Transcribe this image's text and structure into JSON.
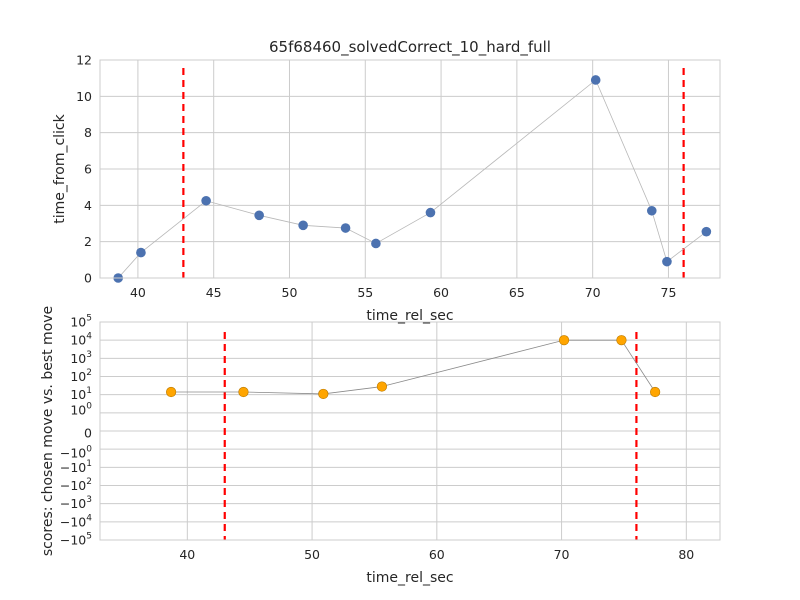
{
  "chart_data": [
    {
      "type": "scatter",
      "title": "65f68460_solvedCorrect_10_hard_full",
      "xlabel": "time_rel_sec",
      "ylabel": "time_from_click",
      "xlim": [
        37.5,
        78.4
      ],
      "ylim": [
        0,
        12
      ],
      "xticks": [
        40,
        45,
        50,
        55,
        60,
        65,
        70,
        75
      ],
      "yticks": [
        0,
        2,
        4,
        6,
        8,
        10,
        12
      ],
      "grid": true,
      "series": [
        {
          "color": "#4c72b0",
          "line": "connected",
          "x": [
            38.7,
            40.2,
            44.5,
            48.0,
            50.9,
            53.7,
            55.7,
            59.3,
            70.2,
            73.9,
            74.9,
            77.5
          ],
          "y": [
            0.0,
            1.4,
            4.25,
            3.45,
            2.9,
            2.75,
            1.9,
            3.6,
            10.9,
            3.7,
            0.9,
            2.55
          ]
        }
      ],
      "vlines": {
        "x": [
          43.0,
          76.0
        ],
        "color": "#ff0000",
        "style": "dashed"
      }
    },
    {
      "type": "scatter",
      "title": "",
      "xlabel": "time_rel_sec",
      "ylabel": "scores: chosen move vs. best move",
      "yscale": "symlog",
      "xlim": [
        33.0,
        82.7
      ],
      "xticks": [
        40,
        50,
        60,
        70,
        80
      ],
      "ytick_values": [
        100000,
        10000,
        1000,
        100,
        10,
        1,
        0,
        -1,
        -10,
        -100,
        -1000,
        -10000,
        -100000
      ],
      "ytick_labels": [
        {
          "base": "10",
          "exp": "5"
        },
        {
          "base": "10",
          "exp": "4"
        },
        {
          "base": "10",
          "exp": "3"
        },
        {
          "base": "10",
          "exp": "2"
        },
        {
          "base": "10",
          "exp": "1"
        },
        {
          "base": "10",
          "exp": "0"
        },
        {
          "base": "0",
          "exp": ""
        },
        {
          "base": "−10",
          "exp": "0"
        },
        {
          "base": "−10",
          "exp": "1"
        },
        {
          "base": "−10",
          "exp": "2"
        },
        {
          "base": "−10",
          "exp": "3"
        },
        {
          "base": "−10",
          "exp": "4"
        },
        {
          "base": "−10",
          "exp": "5"
        }
      ],
      "grid": true,
      "series": [
        {
          "color": "#ffa500",
          "line": "connected",
          "x": [
            38.7,
            44.5,
            50.9,
            55.6,
            70.2,
            74.8,
            77.5
          ],
          "y": [
            14,
            14,
            11,
            28,
            10000,
            10000,
            14
          ]
        }
      ],
      "vlines": {
        "x": [
          43.0,
          76.0
        ],
        "color": "#ff0000",
        "style": "dashed"
      }
    }
  ]
}
